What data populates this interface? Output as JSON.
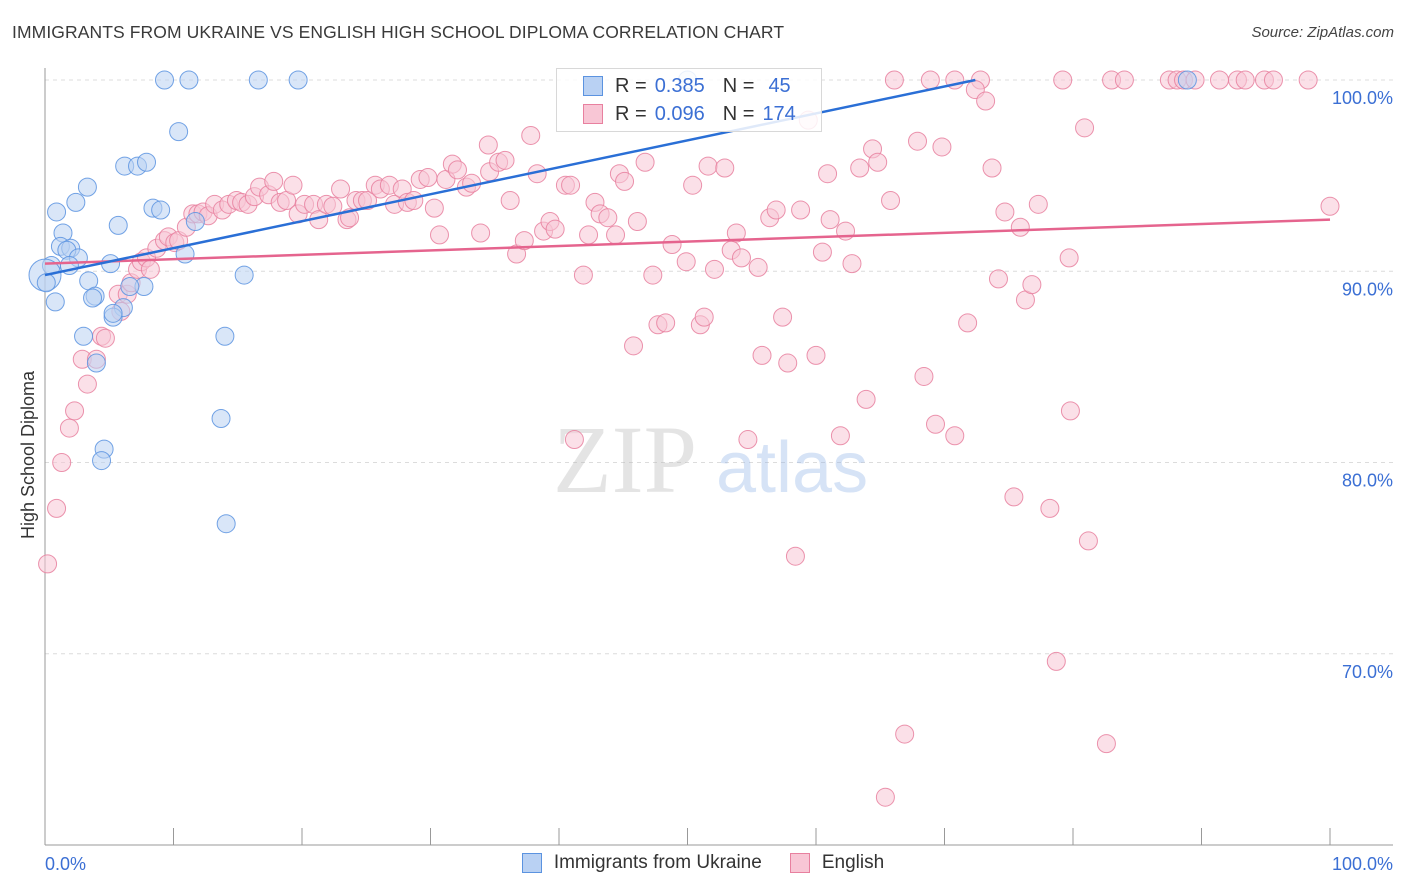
{
  "title": "IMMIGRANTS FROM UKRAINE VS ENGLISH HIGH SCHOOL DIPLOMA CORRELATION CHART",
  "source": "Source: ZipAtlas.com",
  "watermark": "ZIPatlas",
  "colors": {
    "blue": "#5b93e0",
    "blue_fill": "#b9d1f3",
    "blue_line": "#2a6fd6",
    "pink": "#e8809f",
    "pink_fill": "#f8c6d5",
    "pink_line": "#e5648e",
    "value_text": "#3b6fd4"
  },
  "legend": {
    "rows": [
      {
        "r_label": "R =",
        "r_value": "0.385",
        "n_label": "N =",
        "n_value": "45"
      },
      {
        "r_label": "R =",
        "r_value": "0.096",
        "n_label": "N =",
        "n_value": "174"
      }
    ]
  },
  "chart_data": {
    "type": "scatter",
    "title": "IMMIGRANTS FROM UKRAINE VS ENGLISH HIGH SCHOOL DIPLOMA CORRELATION CHART",
    "xlabel": "",
    "ylabel": "High School Diploma",
    "xlim": [
      0,
      100
    ],
    "ylim": [
      60,
      100
    ],
    "x_tick_labels": [
      "0.0%",
      "100.0%"
    ],
    "y_ticks": [
      70,
      80,
      90,
      100
    ],
    "y_tick_labels": [
      "70.0%",
      "80.0%",
      "90.0%",
      "100.0%"
    ],
    "grid": true,
    "legend_position": "bottom",
    "series": [
      {
        "name": "Immigrants from Ukraine",
        "R": 0.385,
        "N": 45,
        "trend": [
          [
            0,
            89.8
          ],
          [
            72.4,
            100
          ]
        ],
        "points": [
          [
            9.3,
            100
          ],
          [
            11.2,
            100
          ],
          [
            16.6,
            100
          ],
          [
            19.7,
            100
          ],
          [
            10.4,
            97.3
          ],
          [
            6.2,
            95.5
          ],
          [
            7.2,
            95.5
          ],
          [
            7.9,
            95.7
          ],
          [
            3.3,
            94.4
          ],
          [
            2.4,
            93.6
          ],
          [
            5.7,
            92.4
          ],
          [
            8.4,
            93.3
          ],
          [
            9.0,
            93.2
          ],
          [
            0.9,
            93.1
          ],
          [
            1.4,
            92.0
          ],
          [
            1.2,
            91.3
          ],
          [
            2.0,
            91.2
          ],
          [
            1.7,
            91.1
          ],
          [
            2.6,
            90.7
          ],
          [
            0.5,
            90.3
          ],
          [
            1.9,
            90.3
          ],
          [
            0,
            89.8
          ],
          [
            5.1,
            90.4
          ],
          [
            10.9,
            90.9
          ],
          [
            15.5,
            89.8
          ],
          [
            3.4,
            89.5
          ],
          [
            0.8,
            88.4
          ],
          [
            3.9,
            88.7
          ],
          [
            3.7,
            88.6
          ],
          [
            6.1,
            88.1
          ],
          [
            5.3,
            87.6
          ],
          [
            5.3,
            87.8
          ],
          [
            7.7,
            89.2
          ],
          [
            6.6,
            89.2
          ],
          [
            3.0,
            86.6
          ],
          [
            4.0,
            85.2
          ],
          [
            14.0,
            86.6
          ],
          [
            13.7,
            82.3
          ],
          [
            4.6,
            80.7
          ],
          [
            4.4,
            80.1
          ],
          [
            14.1,
            76.8
          ],
          [
            50.0,
            100
          ],
          [
            88.9,
            100
          ],
          [
            11.7,
            92.6
          ],
          [
            0.1,
            89.4
          ]
        ]
      },
      {
        "name": "English",
        "R": 0.096,
        "N": 174,
        "trend": [
          [
            0,
            90.4
          ],
          [
            100,
            92.7
          ]
        ],
        "points": [
          [
            66.1,
            100
          ],
          [
            68.9,
            100
          ],
          [
            70.8,
            100
          ],
          [
            72.8,
            100
          ],
          [
            79.2,
            100
          ],
          [
            83.0,
            100
          ],
          [
            84.0,
            100
          ],
          [
            87.5,
            100
          ],
          [
            88.1,
            100
          ],
          [
            88.6,
            100
          ],
          [
            89.5,
            100
          ],
          [
            91.4,
            100
          ],
          [
            92.8,
            100
          ],
          [
            93.4,
            100
          ],
          [
            94.9,
            100
          ],
          [
            95.6,
            100
          ],
          [
            98.3,
            100
          ],
          [
            72.4,
            99.5
          ],
          [
            73.2,
            98.9
          ],
          [
            80.9,
            97.5
          ],
          [
            0.2,
            74.7
          ],
          [
            0.9,
            77.6
          ],
          [
            1.3,
            80.0
          ],
          [
            1.9,
            81.8
          ],
          [
            2.3,
            82.7
          ],
          [
            2.9,
            85.4
          ],
          [
            3.3,
            84.1
          ],
          [
            4.0,
            85.4
          ],
          [
            4.4,
            86.6
          ],
          [
            4.7,
            86.5
          ],
          [
            5.7,
            88.8
          ],
          [
            6.4,
            88.8
          ],
          [
            5.9,
            87.9
          ],
          [
            6.7,
            89.4
          ],
          [
            7.2,
            90.1
          ],
          [
            7.5,
            90.5
          ],
          [
            7.9,
            90.7
          ],
          [
            8.2,
            90.1
          ],
          [
            8.7,
            91.2
          ],
          [
            9.3,
            91.6
          ],
          [
            9.6,
            91.8
          ],
          [
            10.1,
            91.5
          ],
          [
            10.4,
            91.6
          ],
          [
            11.0,
            92.3
          ],
          [
            11.5,
            93.0
          ],
          [
            11.9,
            93.0
          ],
          [
            12.3,
            93.1
          ],
          [
            12.7,
            92.9
          ],
          [
            13.2,
            93.5
          ],
          [
            13.8,
            93.2
          ],
          [
            14.3,
            93.5
          ],
          [
            14.9,
            93.7
          ],
          [
            15.3,
            93.6
          ],
          [
            15.8,
            93.5
          ],
          [
            16.3,
            93.9
          ],
          [
            16.7,
            94.4
          ],
          [
            17.4,
            94.0
          ],
          [
            17.8,
            94.7
          ],
          [
            18.3,
            93.6
          ],
          [
            18.8,
            93.7
          ],
          [
            19.3,
            94.5
          ],
          [
            19.7,
            93.0
          ],
          [
            20.2,
            93.5
          ],
          [
            20.9,
            93.5
          ],
          [
            21.3,
            92.7
          ],
          [
            21.9,
            93.5
          ],
          [
            22.4,
            93.4
          ],
          [
            23.0,
            94.3
          ],
          [
            23.5,
            92.7
          ],
          [
            23.7,
            92.8
          ],
          [
            24.2,
            93.7
          ],
          [
            24.7,
            93.7
          ],
          [
            25.1,
            93.7
          ],
          [
            25.7,
            94.5
          ],
          [
            26.1,
            94.3
          ],
          [
            26.8,
            94.5
          ],
          [
            27.2,
            93.5
          ],
          [
            27.8,
            94.3
          ],
          [
            28.2,
            93.6
          ],
          [
            28.7,
            93.7
          ],
          [
            29.2,
            94.8
          ],
          [
            29.8,
            94.9
          ],
          [
            30.3,
            93.3
          ],
          [
            30.7,
            91.9
          ],
          [
            31.2,
            94.8
          ],
          [
            31.7,
            95.6
          ],
          [
            32.1,
            95.3
          ],
          [
            32.8,
            94.4
          ],
          [
            33.2,
            94.6
          ],
          [
            33.9,
            92.0
          ],
          [
            34.5,
            96.6
          ],
          [
            34.6,
            95.2
          ],
          [
            35.3,
            95.7
          ],
          [
            35.8,
            95.8
          ],
          [
            36.2,
            93.7
          ],
          [
            36.7,
            90.9
          ],
          [
            37.3,
            91.6
          ],
          [
            37.8,
            97.1
          ],
          [
            38.3,
            95.1
          ],
          [
            38.8,
            92.1
          ],
          [
            39.3,
            92.6
          ],
          [
            39.7,
            92.2
          ],
          [
            40.5,
            94.5
          ],
          [
            40.9,
            94.5
          ],
          [
            41.9,
            89.8
          ],
          [
            42.3,
            91.9
          ],
          [
            42.8,
            93.6
          ],
          [
            43.2,
            93.0
          ],
          [
            43.8,
            92.8
          ],
          [
            44.4,
            91.9
          ],
          [
            44.7,
            95.1
          ],
          [
            45.1,
            94.7
          ],
          [
            45.8,
            86.1
          ],
          [
            46.1,
            92.6
          ],
          [
            46.7,
            95.7
          ],
          [
            47.3,
            89.8
          ],
          [
            47.7,
            87.2
          ],
          [
            48.3,
            87.3
          ],
          [
            48.8,
            91.4
          ],
          [
            49.9,
            90.5
          ],
          [
            50.4,
            94.5
          ],
          [
            51.0,
            87.2
          ],
          [
            51.3,
            87.6
          ],
          [
            51.6,
            95.5
          ],
          [
            52.1,
            90.1
          ],
          [
            52.9,
            95.4
          ],
          [
            53.4,
            91.1
          ],
          [
            53.8,
            92.0
          ],
          [
            54.2,
            90.7
          ],
          [
            54.7,
            81.2
          ],
          [
            55.5,
            90.2
          ],
          [
            55.8,
            85.6
          ],
          [
            56.4,
            92.8
          ],
          [
            56.9,
            93.2
          ],
          [
            57.4,
            87.6
          ],
          [
            57.8,
            85.2
          ],
          [
            58.4,
            75.1
          ],
          [
            58.8,
            93.2
          ],
          [
            59.4,
            97.9
          ],
          [
            60.0,
            85.6
          ],
          [
            60.5,
            91.0
          ],
          [
            60.9,
            95.1
          ],
          [
            61.1,
            92.7
          ],
          [
            61.9,
            81.4
          ],
          [
            62.3,
            92.1
          ],
          [
            62.8,
            90.4
          ],
          [
            63.4,
            95.4
          ],
          [
            63.9,
            83.3
          ],
          [
            64.4,
            96.4
          ],
          [
            64.8,
            95.7
          ],
          [
            65.8,
            93.7
          ],
          [
            66.9,
            65.8
          ],
          [
            65.4,
            62.5
          ],
          [
            67.9,
            96.8
          ],
          [
            68.4,
            84.5
          ],
          [
            69.3,
            82.0
          ],
          [
            69.8,
            96.5
          ],
          [
            70.8,
            81.4
          ],
          [
            71.8,
            87.3
          ],
          [
            73.7,
            95.4
          ],
          [
            74.2,
            89.6
          ],
          [
            74.7,
            93.1
          ],
          [
            75.4,
            78.2
          ],
          [
            75.9,
            92.3
          ],
          [
            76.3,
            88.5
          ],
          [
            76.8,
            89.3
          ],
          [
            77.3,
            93.5
          ],
          [
            78.2,
            77.6
          ],
          [
            78.7,
            69.6
          ],
          [
            79.7,
            90.7
          ],
          [
            79.8,
            82.7
          ],
          [
            81.2,
            75.9
          ],
          [
            82.6,
            65.3
          ],
          [
            100.0,
            93.4
          ],
          [
            41.2,
            81.2
          ]
        ]
      }
    ]
  }
}
